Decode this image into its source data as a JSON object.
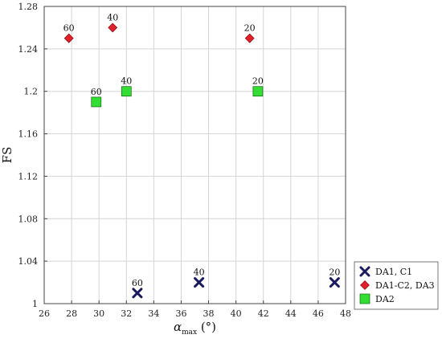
{
  "chart_data": {
    "type": "scatter",
    "xlabel": "α",
    "xlabel_sub": "max",
    "xlabel_unit": " (°)",
    "ylabel": "FS",
    "xlim": [
      26,
      48
    ],
    "ylim": [
      1.0,
      1.28
    ],
    "x_ticks": [
      26,
      28,
      30,
      32,
      34,
      36,
      38,
      40,
      42,
      44,
      46,
      48
    ],
    "y_ticks": [
      1,
      1.04,
      1.08,
      1.12,
      1.16,
      1.2,
      1.24,
      1.28
    ],
    "y_tick_labels": [
      "1",
      "1.04",
      "1.08",
      "1.12",
      "1.16",
      "1.2",
      "1.24",
      "1.28"
    ],
    "grid": true,
    "legend_position": "bottom-right-outside",
    "series": [
      {
        "name": "DA1, C1",
        "marker": "x",
        "color": "#1a1a5e",
        "points": [
          {
            "x": 32.8,
            "y": 1.01,
            "label": "60"
          },
          {
            "x": 37.3,
            "y": 1.02,
            "label": "40"
          },
          {
            "x": 47.2,
            "y": 1.02,
            "label": "20"
          }
        ]
      },
      {
        "name": "DA1-C2, DA3",
        "marker": "diamond",
        "color": "#e0202a",
        "points": [
          {
            "x": 27.8,
            "y": 1.25,
            "label": "60"
          },
          {
            "x": 31.0,
            "y": 1.26,
            "label": "40"
          },
          {
            "x": 41.0,
            "y": 1.25,
            "label": "20"
          }
        ]
      },
      {
        "name": "DA2",
        "marker": "square",
        "color": "#33dd33",
        "points": [
          {
            "x": 29.8,
            "y": 1.19,
            "label": "60"
          },
          {
            "x": 32.0,
            "y": 1.2,
            "label": "40"
          },
          {
            "x": 41.6,
            "y": 1.2,
            "label": "20"
          }
        ]
      }
    ]
  }
}
